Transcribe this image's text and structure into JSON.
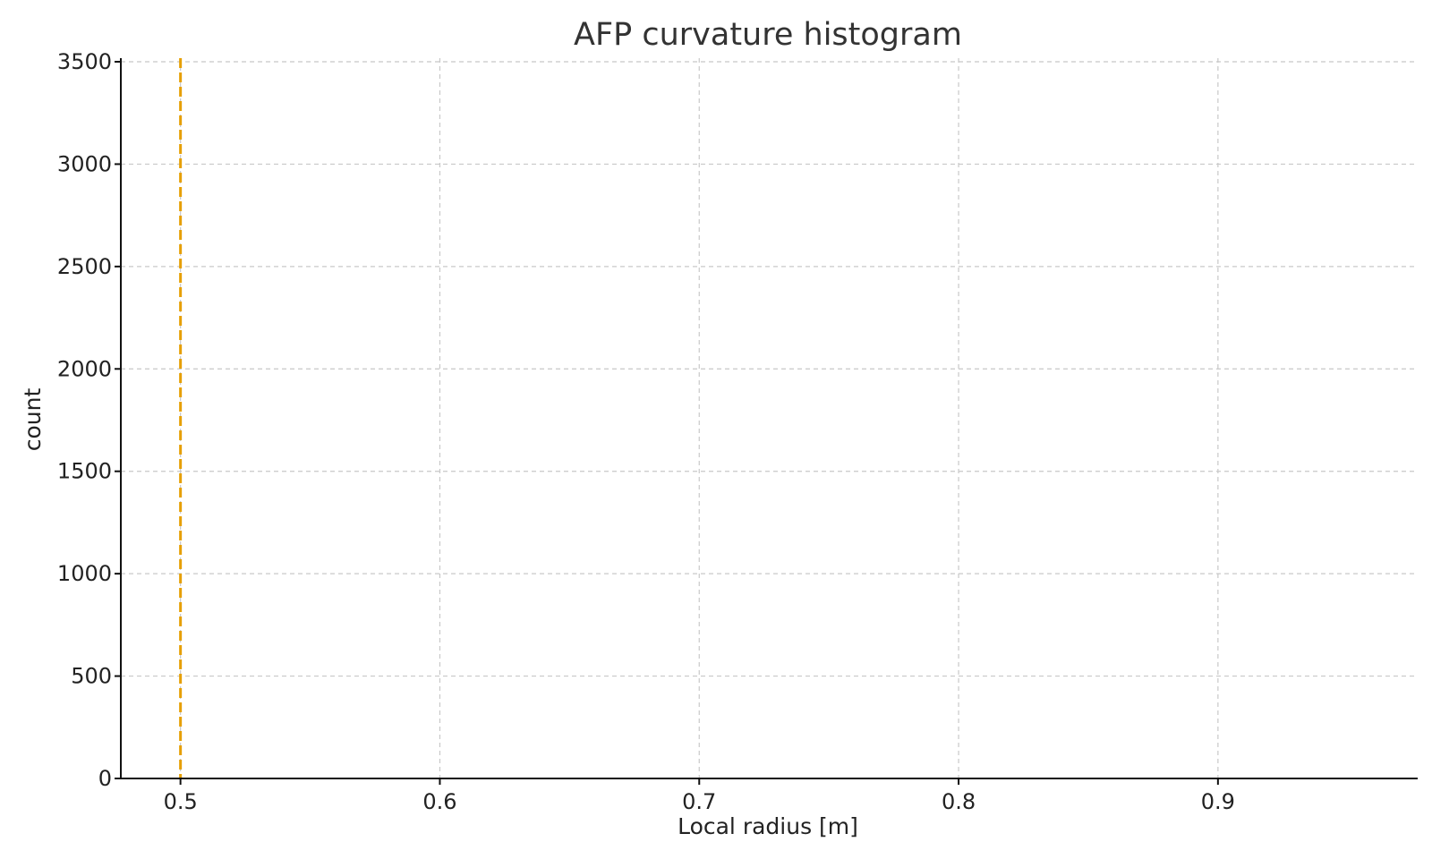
{
  "chart_data": {
    "type": "bar",
    "title": "AFP curvature histogram",
    "xlabel": "Local radius [m]",
    "ylabel": "count",
    "xlim": [
      0.477,
      0.977
    ],
    "ylim": [
      0,
      3500
    ],
    "xticks": [
      "0.5",
      "0.6",
      "0.7",
      "0.8",
      "0.9"
    ],
    "xtick_values": [
      0.5,
      0.6,
      0.7,
      0.8,
      0.9
    ],
    "yticks": [
      "0",
      "500",
      "1000",
      "1500",
      "2000",
      "2500",
      "3000",
      "3500"
    ],
    "ytick_values": [
      0,
      500,
      1000,
      1500,
      2000,
      2500,
      3000,
      3500
    ],
    "grid": true,
    "bins": [],
    "reference_line": {
      "x": 0.5,
      "color": "#e69f00",
      "style": "dashed"
    }
  }
}
